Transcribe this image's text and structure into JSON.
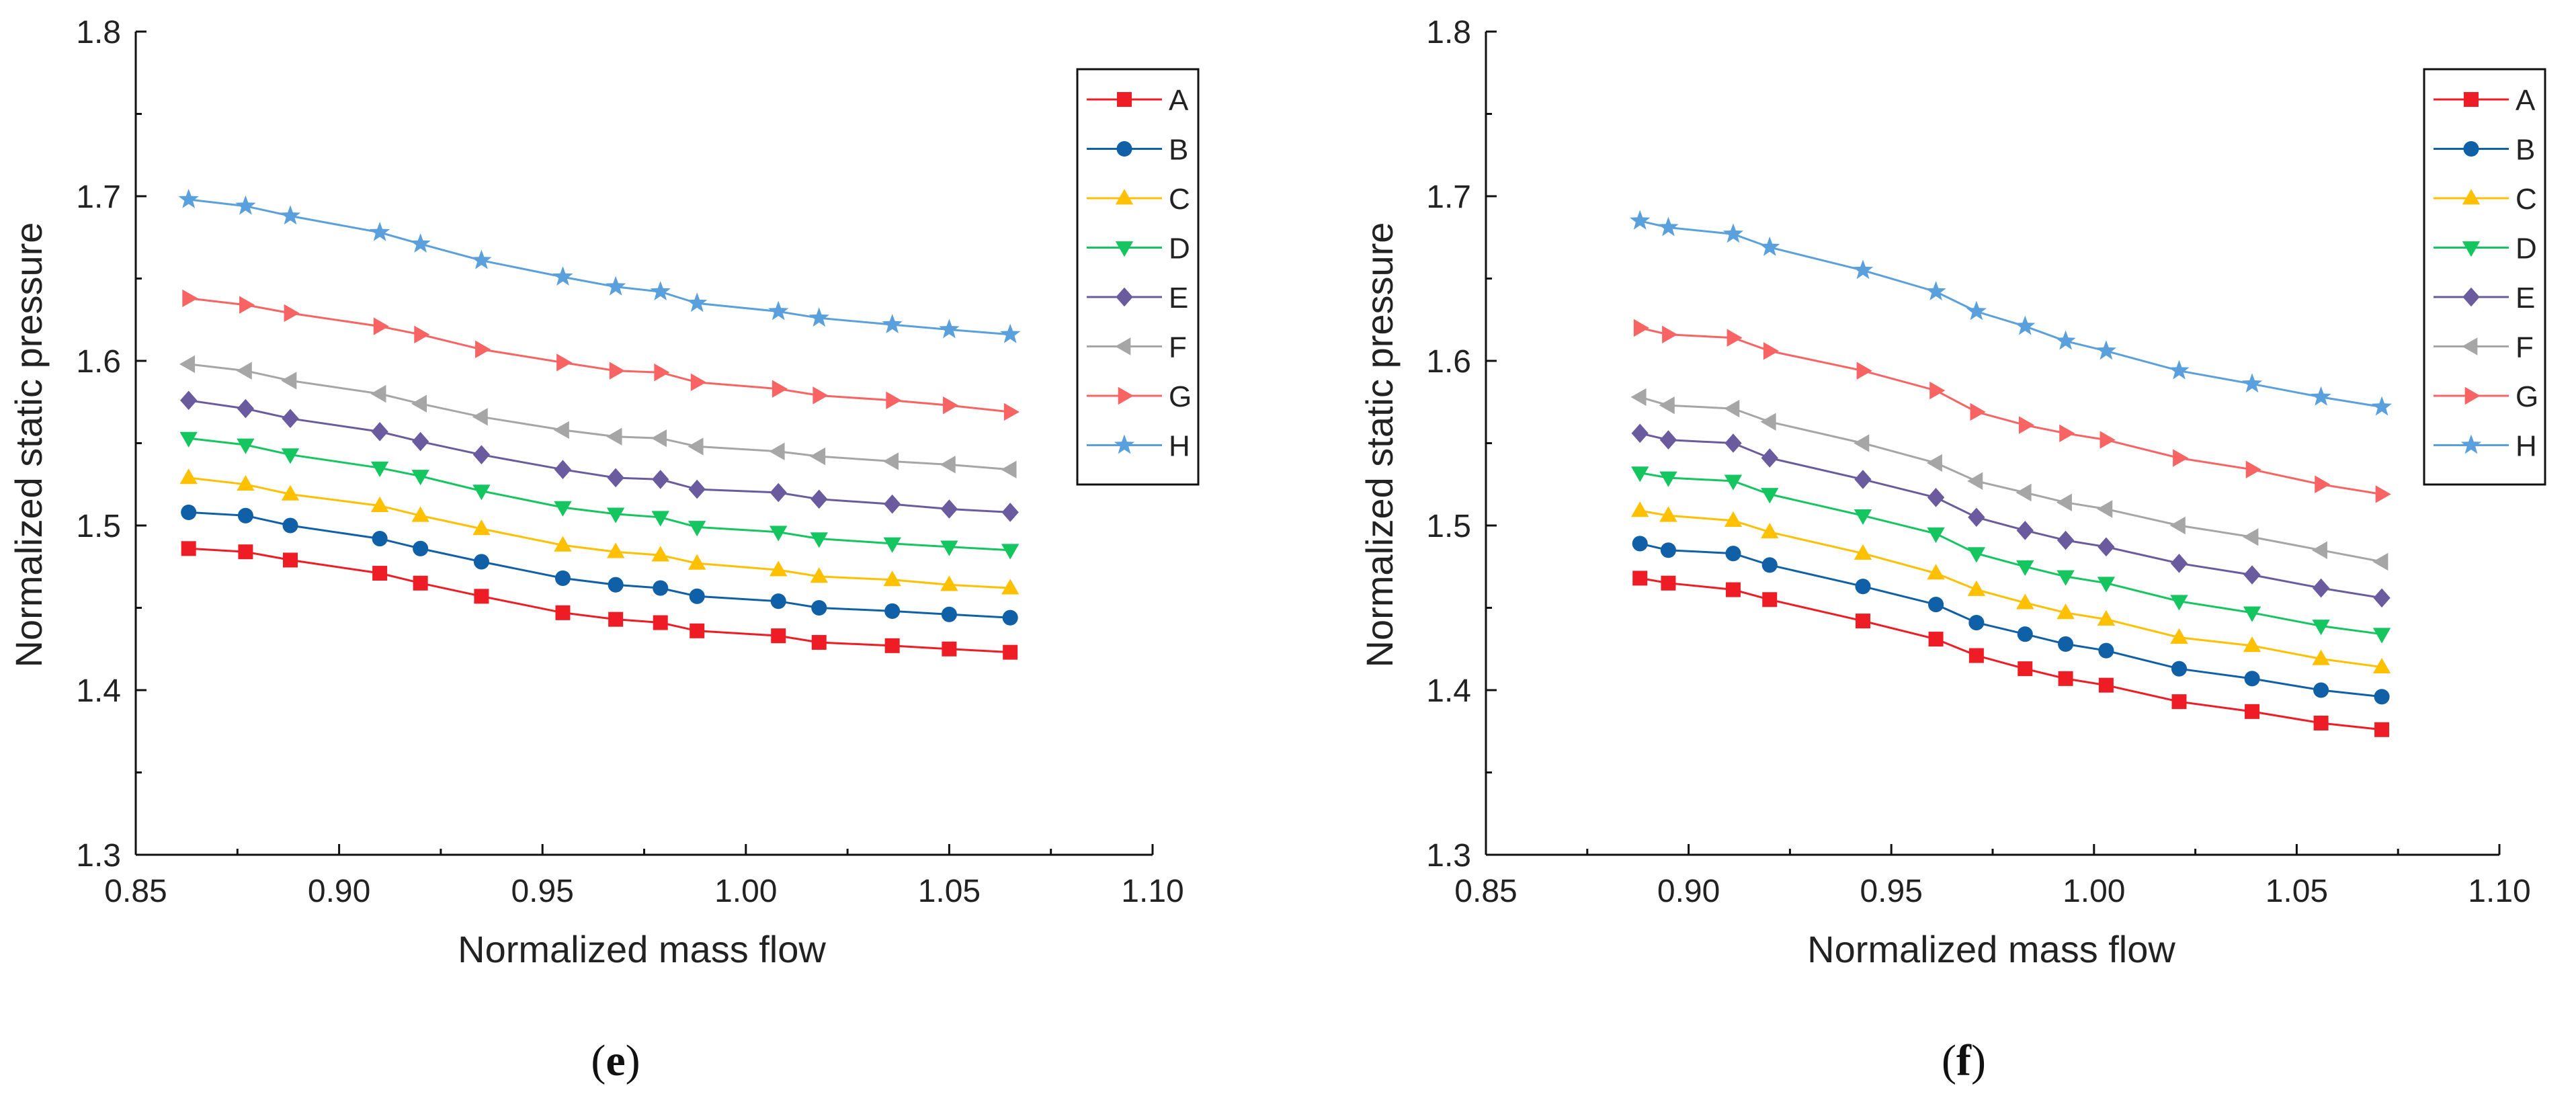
{
  "chart_data": [
    {
      "panel": "e",
      "caption_open": "(",
      "caption_letter": "e",
      "caption_close": ")",
      "type": "line",
      "xlabel": "Normalized mass flow",
      "ylabel": "Normalized static pressure",
      "xlim": [
        0.85,
        1.1
      ],
      "ylim": [
        1.3,
        1.8
      ],
      "xticks": [
        "0.85",
        "0.90",
        "0.95",
        "1.00",
        "1.05",
        "1.10"
      ],
      "yticks": [
        "1.3",
        "1.4",
        "1.5",
        "1.6",
        "1.7",
        "1.8"
      ],
      "legend_position": "top-right",
      "x": [
        0.863,
        0.877,
        0.888,
        0.91,
        0.92,
        0.935,
        0.955,
        0.968,
        0.979,
        0.988,
        1.008,
        1.018,
        1.036,
        1.05,
        1.065
      ],
      "series": [
        {
          "name": "A",
          "values": [
            1.486,
            1.484,
            1.479,
            1.471,
            1.465,
            1.457,
            1.447,
            1.443,
            1.441,
            1.436,
            1.433,
            1.429,
            1.427,
            1.425,
            1.423
          ]
        },
        {
          "name": "B",
          "values": [
            1.508,
            1.506,
            1.5,
            1.492,
            1.486,
            1.478,
            1.468,
            1.464,
            1.462,
            1.457,
            1.454,
            1.45,
            1.448,
            1.446,
            1.444
          ]
        },
        {
          "name": "C",
          "values": [
            1.529,
            1.525,
            1.519,
            1.512,
            1.506,
            1.498,
            1.488,
            1.484,
            1.482,
            1.477,
            1.473,
            1.469,
            1.467,
            1.464,
            1.462
          ]
        },
        {
          "name": "D",
          "values": [
            1.553,
            1.549,
            1.543,
            1.535,
            1.53,
            1.521,
            1.511,
            1.507,
            1.505,
            1.499,
            1.496,
            1.492,
            1.489,
            1.487,
            1.485
          ]
        },
        {
          "name": "E",
          "values": [
            1.576,
            1.571,
            1.565,
            1.557,
            1.551,
            1.543,
            1.534,
            1.529,
            1.528,
            1.522,
            1.52,
            1.516,
            1.513,
            1.51,
            1.508
          ]
        },
        {
          "name": "F",
          "values": [
            1.598,
            1.594,
            1.588,
            1.58,
            1.574,
            1.566,
            1.558,
            1.554,
            1.553,
            1.548,
            1.545,
            1.542,
            1.539,
            1.537,
            1.534
          ]
        },
        {
          "name": "G",
          "values": [
            1.638,
            1.634,
            1.629,
            1.621,
            1.616,
            1.607,
            1.599,
            1.594,
            1.593,
            1.587,
            1.583,
            1.579,
            1.576,
            1.573,
            1.569
          ]
        },
        {
          "name": "H",
          "values": [
            1.698,
            1.694,
            1.688,
            1.678,
            1.671,
            1.661,
            1.651,
            1.645,
            1.642,
            1.635,
            1.63,
            1.626,
            1.622,
            1.619,
            1.616
          ]
        }
      ]
    },
    {
      "panel": "f",
      "caption_open": "(",
      "caption_letter": "f",
      "caption_close": ")",
      "type": "line",
      "xlabel": "Normalized mass flow",
      "ylabel": "Normalized static pressure",
      "xlim": [
        0.85,
        1.1
      ],
      "ylim": [
        1.3,
        1.8
      ],
      "xticks": [
        "0.85",
        "0.90",
        "0.95",
        "1.00",
        "1.05",
        "1.10"
      ],
      "yticks": [
        "1.3",
        "1.4",
        "1.5",
        "1.6",
        "1.7",
        "1.8"
      ],
      "legend_position": "top-right",
      "x": [
        0.888,
        0.895,
        0.911,
        0.92,
        0.943,
        0.961,
        0.971,
        0.983,
        0.993,
        1.003,
        1.021,
        1.039,
        1.056,
        1.071
      ],
      "series": [
        {
          "name": "A",
          "values": [
            1.468,
            1.465,
            1.461,
            1.455,
            1.442,
            1.431,
            1.421,
            1.413,
            1.407,
            1.403,
            1.393,
            1.387,
            1.38,
            1.376
          ]
        },
        {
          "name": "B",
          "values": [
            1.489,
            1.485,
            1.483,
            1.476,
            1.463,
            1.452,
            1.441,
            1.434,
            1.428,
            1.424,
            1.413,
            1.407,
            1.4,
            1.396
          ]
        },
        {
          "name": "C",
          "values": [
            1.509,
            1.506,
            1.503,
            1.496,
            1.483,
            1.471,
            1.461,
            1.453,
            1.447,
            1.443,
            1.432,
            1.427,
            1.419,
            1.414
          ]
        },
        {
          "name": "D",
          "values": [
            1.532,
            1.529,
            1.527,
            1.519,
            1.506,
            1.495,
            1.483,
            1.475,
            1.469,
            1.465,
            1.454,
            1.447,
            1.439,
            1.434
          ]
        },
        {
          "name": "E",
          "values": [
            1.556,
            1.552,
            1.55,
            1.541,
            1.528,
            1.517,
            1.505,
            1.497,
            1.491,
            1.487,
            1.477,
            1.47,
            1.462,
            1.456
          ]
        },
        {
          "name": "F",
          "values": [
            1.578,
            1.573,
            1.571,
            1.563,
            1.55,
            1.538,
            1.527,
            1.52,
            1.514,
            1.51,
            1.5,
            1.493,
            1.485,
            1.478
          ]
        },
        {
          "name": "G",
          "values": [
            1.62,
            1.616,
            1.614,
            1.606,
            1.594,
            1.582,
            1.569,
            1.561,
            1.556,
            1.552,
            1.541,
            1.534,
            1.525,
            1.519
          ]
        },
        {
          "name": "H",
          "values": [
            1.685,
            1.681,
            1.677,
            1.669,
            1.655,
            1.642,
            1.63,
            1.621,
            1.612,
            1.606,
            1.594,
            1.586,
            1.578,
            1.572
          ]
        }
      ]
    }
  ],
  "series_styles": [
    {
      "name": "A",
      "color": "#ee1c25",
      "marker": "square"
    },
    {
      "name": "B",
      "color": "#1060a8",
      "marker": "circle"
    },
    {
      "name": "C",
      "color": "#ffc000",
      "marker": "triangle-up"
    },
    {
      "name": "D",
      "color": "#15c560",
      "marker": "triangle-down"
    },
    {
      "name": "E",
      "color": "#6a5b9e",
      "marker": "diamond"
    },
    {
      "name": "F",
      "color": "#a6a6a6",
      "marker": "triangle-left"
    },
    {
      "name": "G",
      "color": "#f86464",
      "marker": "triangle-right"
    },
    {
      "name": "H",
      "color": "#5aa0dc",
      "marker": "star"
    }
  ]
}
